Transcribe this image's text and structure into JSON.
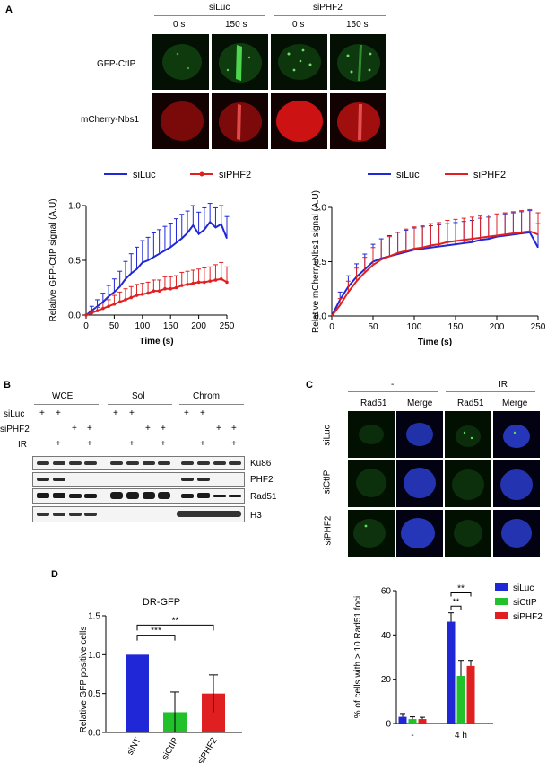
{
  "panelA": {
    "letter": "A",
    "groups": [
      "siLuc",
      "siPHF2"
    ],
    "timepoints": [
      "0 s",
      "150 s",
      "0 s",
      "150 s"
    ],
    "row_labels": [
      "GFP-CtIP",
      "mCherry-Nbs1"
    ]
  },
  "panelB": {
    "letter": "B",
    "fractions": [
      "WCE",
      "Sol",
      "Chrom"
    ],
    "conditions": [
      "siLuc",
      "siPHF2",
      "IR"
    ],
    "plus": "+",
    "markers": [
      "Ku86",
      "PHF2",
      "Rad51",
      "H3"
    ]
  },
  "panelC": {
    "letter": "C",
    "groups": [
      "-",
      "IR"
    ],
    "columns": [
      "Rad51",
      "Merge",
      "Rad51",
      "Merge"
    ],
    "rows": [
      "siLuc",
      "siCtIP",
      "siPHF2"
    ]
  },
  "panelD": {
    "letter": "D"
  },
  "colors": {
    "blue": "#1f27d6",
    "red": "#e02020",
    "green": "#22c02a"
  },
  "chart_data": [
    {
      "type": "line",
      "legend": [
        "siLuc",
        "siPHF2"
      ],
      "xlabel": "Time (s)",
      "ylabel": "Relative GFP-CtIP signal (A.U)",
      "xlim": [
        0,
        250
      ],
      "ylim": [
        0,
        1
      ],
      "xticks": [
        0,
        50,
        100,
        150,
        200,
        250
      ],
      "yticks": [
        "0.0",
        "0.5",
        "1.0"
      ],
      "x": [
        0,
        10,
        20,
        30,
        40,
        50,
        60,
        70,
        80,
        90,
        100,
        110,
        120,
        130,
        140,
        150,
        160,
        170,
        180,
        190,
        200,
        210,
        220,
        230,
        240,
        250
      ],
      "series": [
        {
          "name": "siLuc",
          "values": [
            0,
            0.04,
            0.08,
            0.12,
            0.17,
            0.21,
            0.26,
            0.33,
            0.38,
            0.42,
            0.48,
            0.5,
            0.53,
            0.56,
            0.59,
            0.62,
            0.66,
            0.7,
            0.75,
            0.82,
            0.74,
            0.78,
            0.85,
            0.8,
            0.83,
            0.7
          ],
          "error": [
            0,
            0.04,
            0.06,
            0.08,
            0.1,
            0.12,
            0.14,
            0.16,
            0.18,
            0.2,
            0.2,
            0.21,
            0.22,
            0.22,
            0.22,
            0.22,
            0.22,
            0.22,
            0.2,
            0.18,
            0.2,
            0.2,
            0.17,
            0.18,
            0.17,
            0.2
          ]
        },
        {
          "name": "siPHF2",
          "values": [
            0,
            0.02,
            0.04,
            0.06,
            0.08,
            0.1,
            0.12,
            0.14,
            0.16,
            0.18,
            0.19,
            0.2,
            0.22,
            0.22,
            0.24,
            0.24,
            0.25,
            0.27,
            0.28,
            0.29,
            0.3,
            0.3,
            0.31,
            0.32,
            0.33,
            0.3
          ],
          "error": [
            0,
            0.02,
            0.03,
            0.05,
            0.06,
            0.08,
            0.09,
            0.1,
            0.1,
            0.1,
            0.1,
            0.1,
            0.1,
            0.1,
            0.11,
            0.11,
            0.11,
            0.12,
            0.12,
            0.12,
            0.12,
            0.13,
            0.13,
            0.14,
            0.15,
            0.14
          ]
        }
      ]
    },
    {
      "type": "line",
      "legend": [
        "siLuc",
        "siPHF2"
      ],
      "xlabel": "Time (s)",
      "ylabel": "Relative mCherry-Nbs1 signal (A.U)",
      "xlim": [
        0,
        250
      ],
      "ylim": [
        0,
        1
      ],
      "xticks": [
        0,
        50,
        100,
        150,
        200,
        250
      ],
      "yticks": [
        "0.0",
        "0.5",
        "1.0"
      ],
      "x": [
        0,
        10,
        20,
        30,
        40,
        50,
        60,
        70,
        80,
        90,
        100,
        110,
        120,
        130,
        140,
        150,
        160,
        170,
        180,
        190,
        200,
        210,
        220,
        230,
        240,
        250
      ],
      "series": [
        {
          "name": "siLuc",
          "values": [
            0,
            0.15,
            0.27,
            0.36,
            0.43,
            0.5,
            0.53,
            0.55,
            0.57,
            0.59,
            0.61,
            0.62,
            0.63,
            0.64,
            0.65,
            0.66,
            0.67,
            0.68,
            0.7,
            0.71,
            0.73,
            0.74,
            0.75,
            0.76,
            0.77,
            0.63
          ],
          "error": [
            0,
            0.07,
            0.1,
            0.12,
            0.14,
            0.16,
            0.18,
            0.19,
            0.2,
            0.2,
            0.2,
            0.2,
            0.2,
            0.2,
            0.2,
            0.2,
            0.2,
            0.2,
            0.2,
            0.2,
            0.2,
            0.2,
            0.2,
            0.2,
            0.2,
            0.22
          ]
        },
        {
          "name": "siPHF2",
          "values": [
            0,
            0.1,
            0.22,
            0.32,
            0.4,
            0.47,
            0.52,
            0.55,
            0.58,
            0.6,
            0.62,
            0.63,
            0.65,
            0.66,
            0.68,
            0.69,
            0.7,
            0.71,
            0.72,
            0.73,
            0.74,
            0.75,
            0.76,
            0.77,
            0.78,
            0.75
          ],
          "error": [
            0,
            0.06,
            0.1,
            0.12,
            0.14,
            0.16,
            0.17,
            0.18,
            0.19,
            0.2,
            0.2,
            0.2,
            0.2,
            0.2,
            0.2,
            0.2,
            0.2,
            0.2,
            0.2,
            0.2,
            0.2,
            0.2,
            0.2,
            0.2,
            0.2,
            0.2
          ]
        }
      ]
    },
    {
      "type": "bar",
      "title": "DR-GFP",
      "ylabel": "Relative GFP positive cells",
      "categories": [
        "siNT",
        "siCtIP",
        "siPHF2"
      ],
      "values": [
        1.0,
        0.26,
        0.5
      ],
      "error": [
        0,
        0.26,
        0.24
      ],
      "ylim": [
        0,
        1.5
      ],
      "yticks": [
        "0.0",
        "0.5",
        "1.0",
        "1.5"
      ],
      "significance": [
        "***",
        "**"
      ]
    },
    {
      "type": "bar",
      "ylabel": "% of cells with > 10 Rad51 foci",
      "categories": [
        "-",
        "4 h"
      ],
      "series": [
        {
          "name": "siLuc",
          "values": [
            3,
            46
          ],
          "error": [
            1.5,
            4
          ]
        },
        {
          "name": "siCtIP",
          "values": [
            2,
            21.5
          ],
          "error": [
            1,
            7
          ]
        },
        {
          "name": "siPHF2",
          "values": [
            2,
            26
          ],
          "error": [
            0.8,
            2.5
          ]
        }
      ],
      "ylim": [
        0,
        60
      ],
      "yticks": [
        "0",
        "20",
        "40",
        "60"
      ],
      "significance": [
        "**",
        "**"
      ]
    }
  ]
}
